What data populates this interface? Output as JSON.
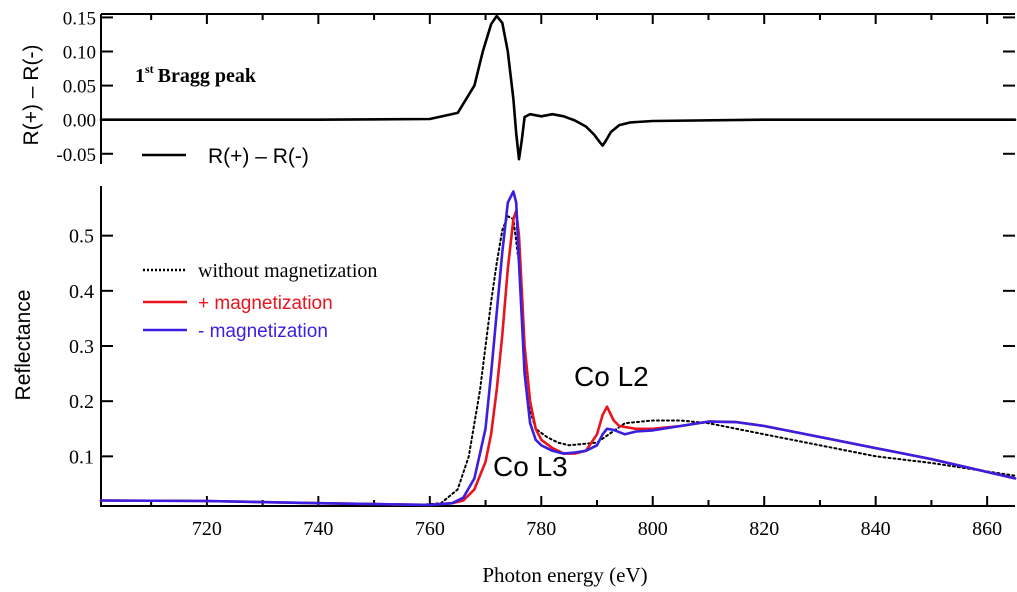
{
  "chart_data": [
    {
      "type": "line",
      "panel": "top",
      "title": "",
      "annotation_text": "Bragg peak",
      "annotation_prefix": "1",
      "annotation_superscript": "st",
      "xlabel": "",
      "ylabel": "R(+) – R(-)",
      "xlim": [
        701,
        865
      ],
      "ylim": [
        -0.065,
        0.155
      ],
      "yticks": [
        0.15,
        0.1,
        0.05,
        0.0,
        -0.05
      ],
      "ytick_labels": [
        "0.15",
        "0.10",
        "0.05",
        "0.00",
        "-0.05"
      ],
      "grid": false,
      "legend": {
        "placement": "lower-left",
        "entries": [
          "R(+) – R(-)"
        ]
      },
      "series": [
        {
          "name": "R(+) – R(-)",
          "color": "#000000",
          "style": "solid",
          "x": [
            701,
            740,
            760,
            765,
            768,
            769.5,
            771,
            772,
            773,
            774,
            775,
            775.5,
            776,
            776.5,
            777,
            778,
            780,
            782,
            784,
            786,
            788,
            789.5,
            790.5,
            791,
            791.5,
            792.5,
            794,
            796,
            800,
            820,
            865
          ],
          "y": [
            0.0,
            0.0,
            0.001,
            0.01,
            0.05,
            0.1,
            0.14,
            0.152,
            0.142,
            0.1,
            0.03,
            -0.02,
            -0.058,
            -0.03,
            0.004,
            0.008,
            0.005,
            0.008,
            0.005,
            -0.001,
            -0.01,
            -0.022,
            -0.033,
            -0.038,
            -0.032,
            -0.018,
            -0.008,
            -0.004,
            -0.002,
            0.0,
            0.0
          ]
        }
      ]
    },
    {
      "type": "line",
      "panel": "bottom",
      "title": "",
      "xlabel": "Photon energy (eV)",
      "ylabel": "Reflectance",
      "xlim": [
        701,
        865
      ],
      "ylim": [
        0.01,
        0.59
      ],
      "xticks": [
        720,
        740,
        760,
        780,
        800,
        820,
        840,
        860
      ],
      "xtick_labels": [
        "720",
        "740",
        "760",
        "780",
        "800",
        "820",
        "840",
        "860"
      ],
      "yticks": [
        0.5,
        0.4,
        0.3,
        0.2,
        0.1
      ],
      "ytick_labels": [
        "0.5",
        "0.4",
        "0.3",
        "0.2",
        "0.1"
      ],
      "grid": false,
      "legend": {
        "placement": "upper-left",
        "entries": [
          "without magnetization",
          "+ magnetization",
          "- magnetization"
        ]
      },
      "annotations": [
        "Co L2",
        "Co L3"
      ],
      "series": [
        {
          "name": "without magnetization",
          "color": "#000000",
          "style": "dotted",
          "x": [
            701,
            720,
            740,
            758,
            762,
            765,
            767,
            769,
            771,
            772,
            773,
            774,
            775,
            776,
            776.5,
            777.5,
            779,
            781,
            783,
            785,
            790,
            795,
            800,
            805,
            810,
            820,
            830,
            840,
            850,
            865
          ],
          "y": [
            0.02,
            0.019,
            0.015,
            0.012,
            0.015,
            0.04,
            0.1,
            0.22,
            0.38,
            0.45,
            0.51,
            0.535,
            0.53,
            0.45,
            0.35,
            0.2,
            0.15,
            0.135,
            0.125,
            0.12,
            0.125,
            0.16,
            0.165,
            0.165,
            0.16,
            0.14,
            0.12,
            0.1,
            0.088,
            0.065
          ]
        },
        {
          "name": "+ magnetization",
          "color": "#e8141e",
          "style": "solid",
          "x": [
            701,
            720,
            740,
            760,
            764,
            766,
            768,
            770,
            771,
            772,
            773,
            774,
            775,
            775.5,
            776,
            776.5,
            777,
            778,
            779,
            780,
            782,
            784,
            786,
            788,
            790,
            791,
            791.8,
            793,
            794,
            797,
            800,
            805,
            810,
            815,
            820,
            830,
            840,
            850,
            865
          ],
          "y": [
            0.02,
            0.019,
            0.015,
            0.012,
            0.015,
            0.02,
            0.04,
            0.09,
            0.14,
            0.22,
            0.32,
            0.44,
            0.53,
            0.545,
            0.5,
            0.4,
            0.3,
            0.2,
            0.15,
            0.13,
            0.115,
            0.105,
            0.105,
            0.11,
            0.14,
            0.175,
            0.19,
            0.165,
            0.155,
            0.15,
            0.15,
            0.155,
            0.163,
            0.162,
            0.155,
            0.135,
            0.115,
            0.095,
            0.06
          ]
        },
        {
          "name": "- magnetization",
          "color": "#3a1fe0",
          "style": "solid",
          "x": [
            701,
            720,
            740,
            760,
            764,
            766,
            768,
            770,
            771,
            772,
            773,
            774,
            775,
            775.5,
            776,
            777,
            778,
            779,
            780,
            782,
            784,
            786,
            788,
            790,
            791,
            791.8,
            793,
            795,
            797,
            800,
            805,
            810,
            815,
            820,
            830,
            840,
            850,
            865
          ],
          "y": [
            0.02,
            0.019,
            0.015,
            0.012,
            0.015,
            0.025,
            0.06,
            0.15,
            0.25,
            0.36,
            0.47,
            0.56,
            0.58,
            0.56,
            0.45,
            0.25,
            0.16,
            0.13,
            0.12,
            0.11,
            0.105,
            0.107,
            0.11,
            0.12,
            0.14,
            0.15,
            0.148,
            0.14,
            0.145,
            0.147,
            0.155,
            0.163,
            0.162,
            0.155,
            0.135,
            0.115,
            0.095,
            0.06
          ]
        }
      ]
    }
  ]
}
